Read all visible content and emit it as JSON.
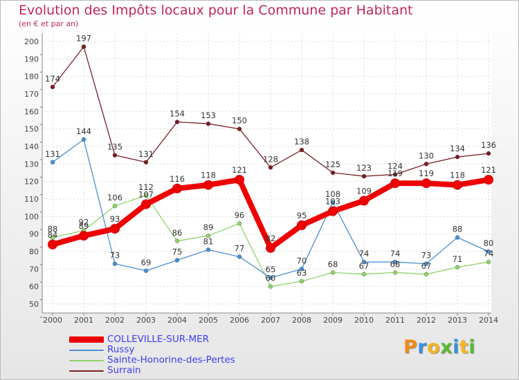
{
  "title": "Evolution des Impôts locaux pour la Commune par Habitant",
  "subtitle": "(en € et par an)",
  "logo": {
    "text": "Proxiti",
    "colors": [
      "#f08a18",
      "#3a8ede",
      "#f5b320",
      "#58b82e",
      "#3a8ede",
      "#f5b320",
      "#58b82e"
    ]
  },
  "chart_data": {
    "type": "line",
    "title": "Evolution des Impôts locaux pour la Commune par Habitant",
    "subtitle": "(en € et par an)",
    "xlabel": "",
    "ylabel": "",
    "x": [
      "2000",
      "2001",
      "2002",
      "2003",
      "2004",
      "2005",
      "2006",
      "2007",
      "2008",
      "2009",
      "2010",
      "2011",
      "2012",
      "2013",
      "2014"
    ],
    "ylim": [
      50,
      200
    ],
    "yticks": [
      50,
      60,
      70,
      80,
      90,
      100,
      110,
      120,
      130,
      140,
      150,
      160,
      170,
      180,
      190,
      200
    ],
    "grid": true,
    "legend_position": "bottom-left",
    "series": [
      {
        "name": "COLLEVILLE-SUR-MER",
        "color": "#ee0000",
        "values": [
          84,
          89,
          93,
          107,
          116,
          118,
          121,
          82,
          95,
          103,
          109,
          119,
          119,
          118,
          121
        ],
        "labels": [
          "84",
          "89",
          "93",
          "107",
          "116",
          "118",
          "121",
          "82",
          "95",
          "103",
          "109",
          "119",
          "119",
          "118",
          "121"
        ]
      },
      {
        "name": "Russy",
        "color": "#4a8fd0",
        "values": [
          131,
          144,
          73,
          69,
          75,
          81,
          77,
          65,
          70,
          108,
          74,
          74,
          73,
          88,
          80
        ],
        "labels": [
          "131",
          "144",
          "73",
          "69",
          "75",
          "81",
          "77",
          "65",
          "70",
          "108",
          "74",
          "74",
          "73",
          "88",
          "80"
        ]
      },
      {
        "name": "Sainte-Honorine-des-Pertes",
        "color": "#8fd26a",
        "values": [
          88,
          92,
          106,
          112,
          86,
          89,
          96,
          60,
          63,
          68,
          67,
          68,
          67,
          71,
          74
        ],
        "labels": [
          "88",
          "92",
          "106",
          "112",
          "86",
          "89",
          "96",
          "60",
          "63",
          "68",
          "67",
          "68",
          "67",
          "71",
          "74"
        ]
      },
      {
        "name": "Surrain",
        "color": "#7a1e24",
        "values": [
          174,
          197,
          135,
          131,
          154,
          153,
          150,
          128,
          138,
          125,
          123,
          124,
          130,
          134,
          136
        ],
        "labels": [
          "174",
          "197",
          "135",
          "131",
          "154",
          "153",
          "150",
          "128",
          "138",
          "125",
          "123",
          "124",
          "130",
          "134",
          "136"
        ]
      }
    ]
  }
}
